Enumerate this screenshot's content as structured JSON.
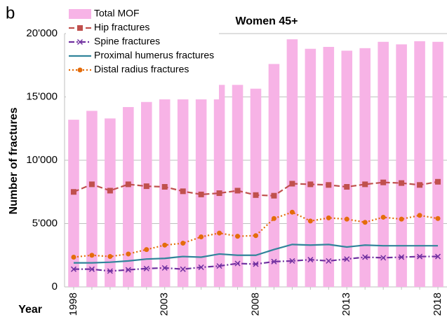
{
  "chart_data": {
    "type": "bar",
    "panel_label": "b",
    "title": "Women 45+",
    "xlabel": "Year",
    "ylabel": "Number of fractures",
    "categories": [
      "1998",
      null,
      null,
      null,
      null,
      "2003",
      null,
      null,
      null,
      null,
      "2008",
      null,
      null,
      null,
      null,
      "2013",
      null,
      null,
      null,
      null,
      "2018"
    ],
    "ylim": [
      0,
      20000
    ],
    "yticks": [
      0,
      {
        "value": 5000,
        "label": "5'000"
      },
      {
        "value": 10000,
        "label": "10'000"
      },
      {
        "value": 15000,
        "label": "15'000"
      },
      {
        "value": 20000,
        "label": "20'000"
      }
    ],
    "grid": true,
    "legend": "upper left",
    "series": [
      {
        "name": "Total MOF",
        "type": "bar",
        "color": "#f7b3e6",
        "values": [
          13200,
          13900,
          13300,
          14200,
          14600,
          15000,
          14850,
          15300,
          15950,
          15950,
          15650,
          17600,
          19550,
          18800,
          18950,
          18650,
          18850,
          19350,
          19150,
          19400,
          19350
        ]
      },
      {
        "name": "Hip fractures",
        "type": "line",
        "color": "#c0504d",
        "dash": "dashed",
        "marker": "square",
        "values": [
          7500,
          8100,
          7600,
          8100,
          7950,
          7900,
          7550,
          7300,
          7400,
          7600,
          7250,
          7200,
          8150,
          8100,
          8050,
          7900,
          8100,
          8250,
          8200,
          8050,
          8300
        ]
      },
      {
        "name": "Spine fractures",
        "type": "line",
        "color": "#7030a0",
        "dash": "dashdot",
        "marker": "x",
        "values": [
          1400,
          1400,
          1250,
          1350,
          1450,
          1500,
          1400,
          1550,
          1650,
          1850,
          1800,
          2000,
          2050,
          2150,
          2050,
          2200,
          2350,
          2300,
          2350,
          2400,
          2400
        ]
      },
      {
        "name": "Proximal humerus fractures",
        "type": "line",
        "color": "#31849b",
        "dash": "solid",
        "marker": "none",
        "values": [
          1900,
          1900,
          1950,
          2050,
          2200,
          2250,
          2400,
          2350,
          2600,
          2500,
          2500,
          2950,
          3350,
          3300,
          3350,
          3150,
          3300,
          3250,
          3250,
          3250,
          3250
        ]
      },
      {
        "name": "Distal radius fractures",
        "type": "line",
        "color": "#e46c0a",
        "dash": "dotted",
        "marker": "circle",
        "values": [
          2350,
          2500,
          2400,
          2600,
          2950,
          3300,
          3450,
          3950,
          4250,
          4000,
          4050,
          5400,
          5900,
          5200,
          5450,
          5350,
          5100,
          5500,
          5350,
          5650,
          5400
        ]
      }
    ]
  }
}
